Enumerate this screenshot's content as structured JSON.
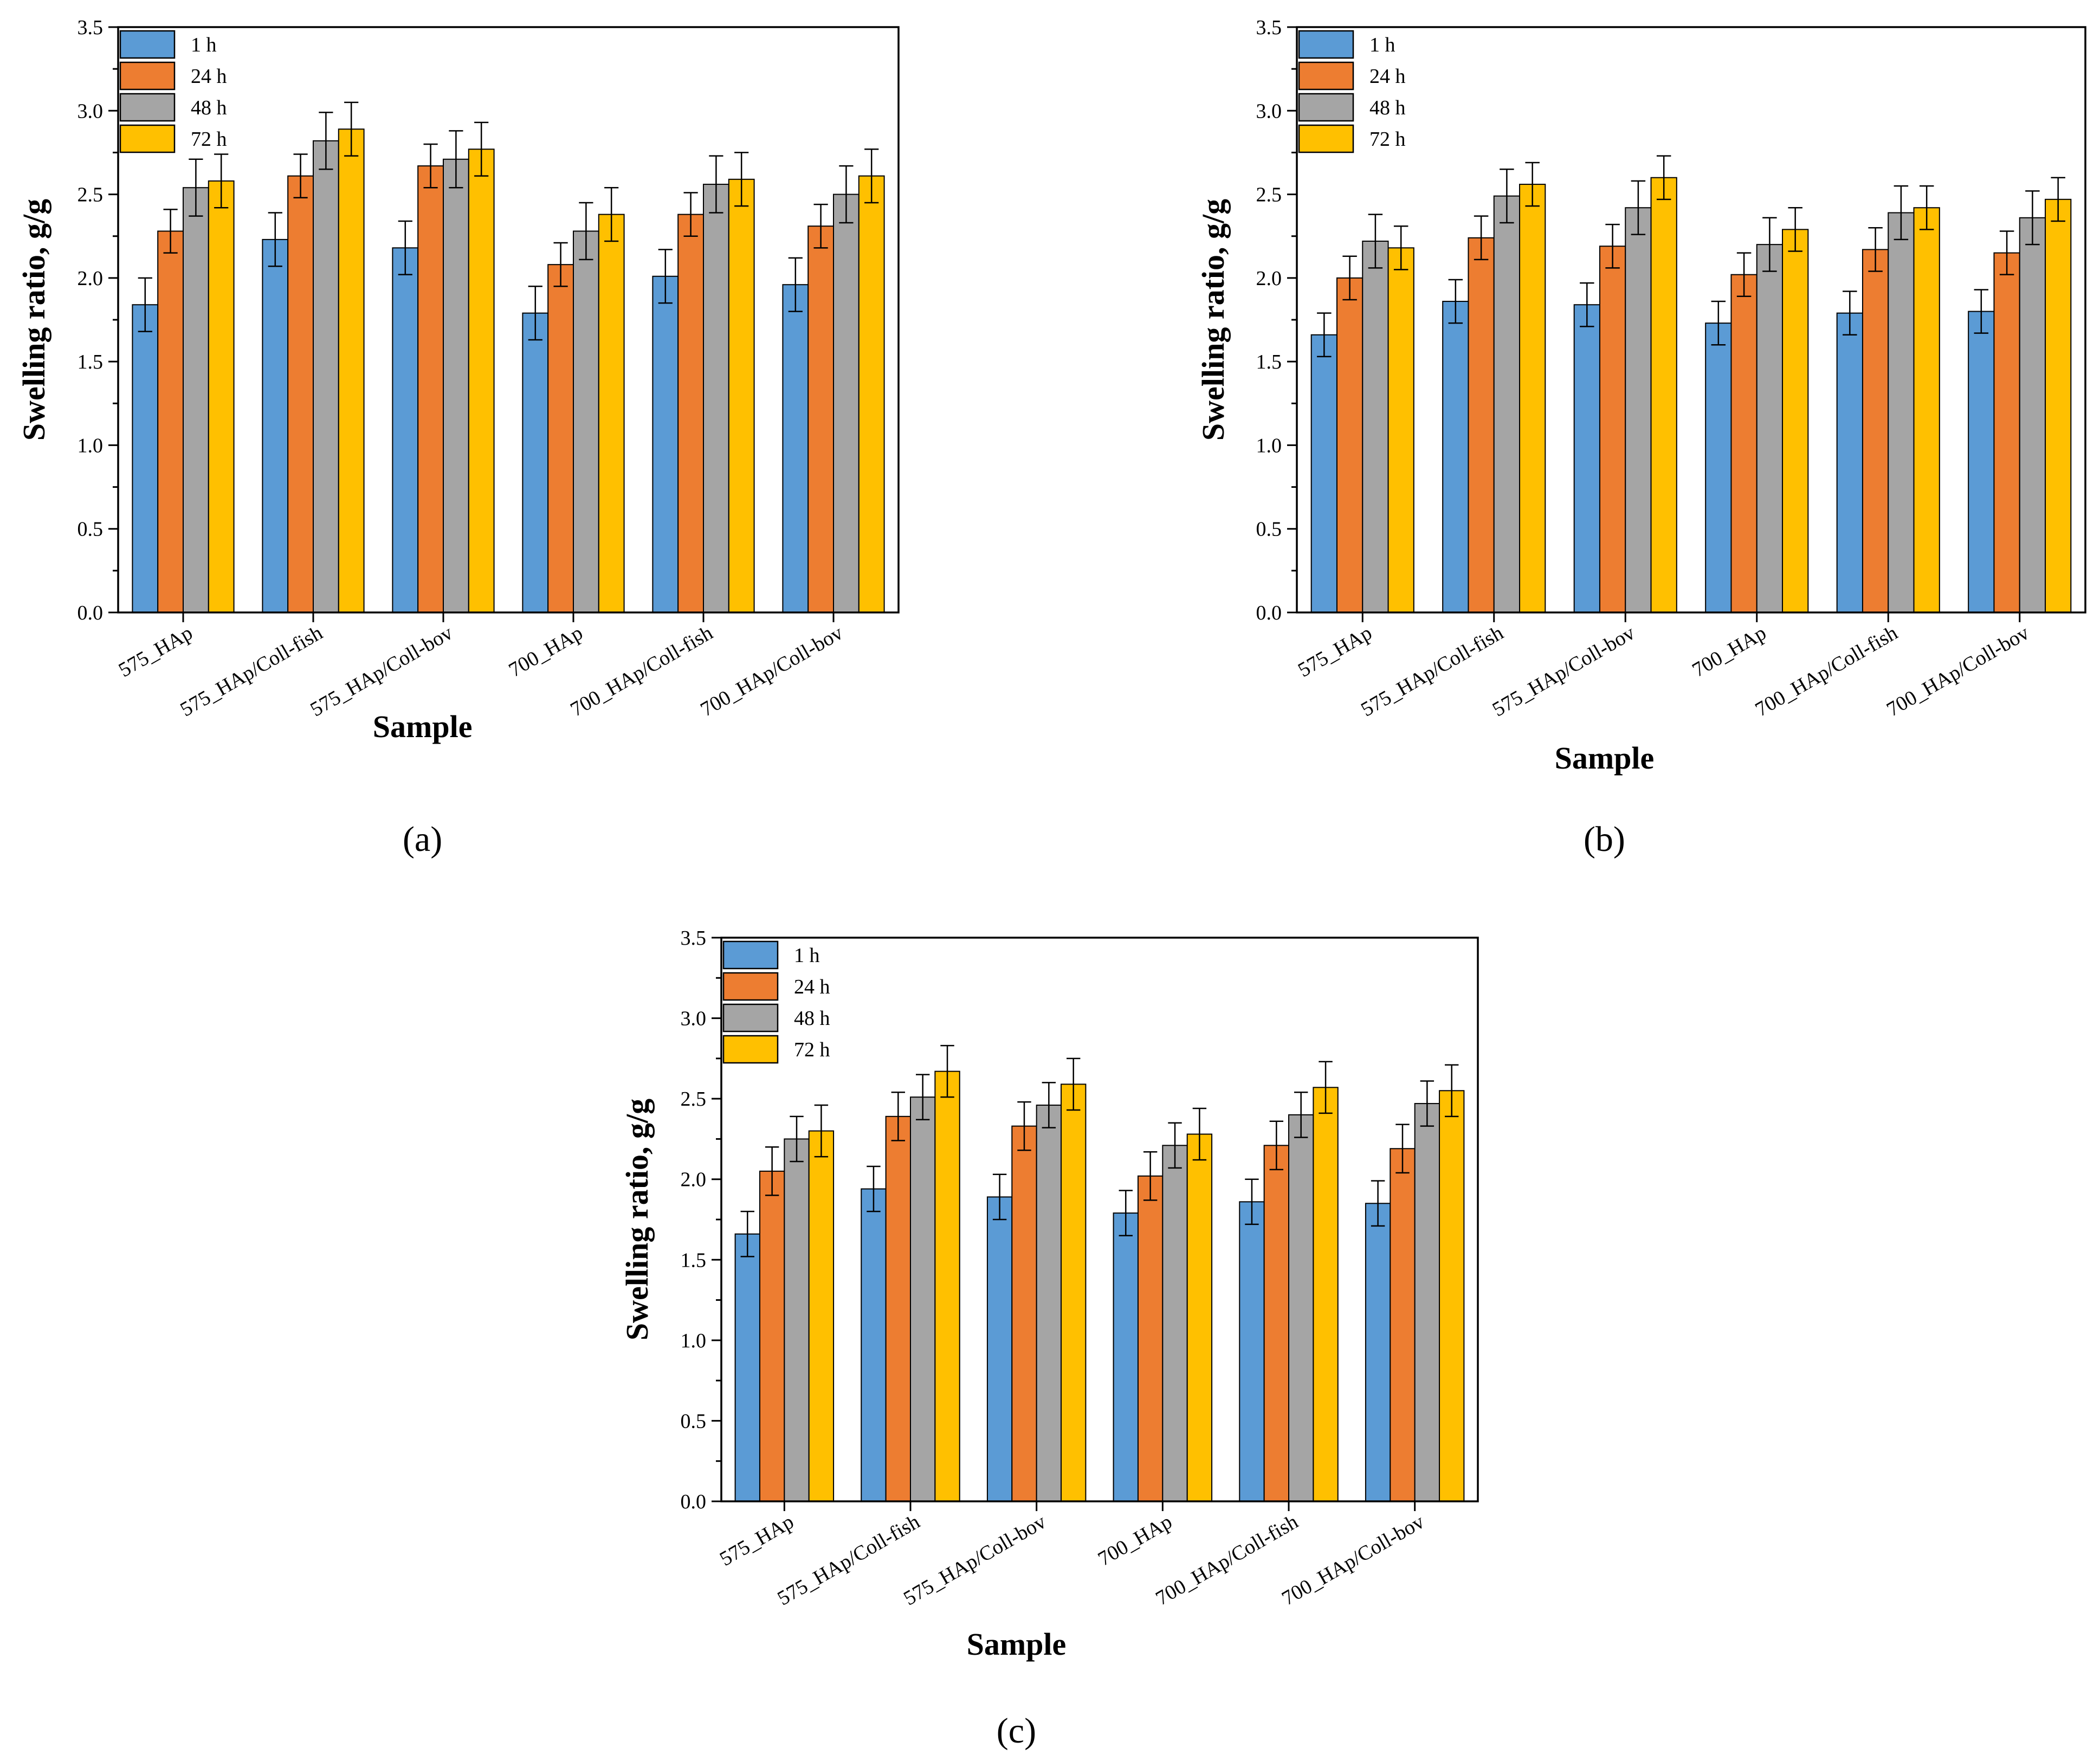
{
  "colors": {
    "1 h": "#5b9bd5",
    "24 h": "#ed7d31",
    "48 h": "#a5a5a5",
    "72 h": "#ffc000",
    "axis": "#000000",
    "errorbar": "#000000"
  },
  "chart_data": [
    {
      "type": "bar",
      "panel_label": "(a)",
      "xlabel": "Sample",
      "ylabel": "Swelling ratio, g/g",
      "ylim": [
        0,
        3.5
      ],
      "yticks": [
        "0.0",
        "0.5",
        "1.0",
        "1.5",
        "2.0",
        "2.5",
        "3.0",
        "3.5"
      ],
      "categories": [
        "575_HAp",
        "575_HAp/Coll-fish",
        "575_HAp/Coll-bov",
        "700_HAp",
        "700_HAp/Coll-fish",
        "700_HAp/Coll-bov"
      ],
      "legend_position": "top-left",
      "grid": false,
      "series": [
        {
          "name": "1 h",
          "values": [
            1.84,
            2.23,
            2.18,
            1.79,
            2.01,
            1.96
          ],
          "errors": [
            0.16,
            0.16,
            0.16,
            0.16,
            0.16,
            0.16
          ]
        },
        {
          "name": "24 h",
          "values": [
            2.28,
            2.61,
            2.67,
            2.08,
            2.38,
            2.31
          ],
          "errors": [
            0.13,
            0.13,
            0.13,
            0.13,
            0.13,
            0.13
          ]
        },
        {
          "name": "48 h",
          "values": [
            2.54,
            2.82,
            2.71,
            2.28,
            2.56,
            2.5
          ],
          "errors": [
            0.17,
            0.17,
            0.17,
            0.17,
            0.17,
            0.17
          ]
        },
        {
          "name": "72 h",
          "values": [
            2.58,
            2.89,
            2.77,
            2.38,
            2.59,
            2.61
          ],
          "errors": [
            0.16,
            0.16,
            0.16,
            0.16,
            0.16,
            0.16
          ]
        }
      ]
    },
    {
      "type": "bar",
      "panel_label": "(b)",
      "xlabel": "Sample",
      "ylabel": "Swelling ratio, g/g",
      "ylim": [
        0,
        3.5
      ],
      "yticks": [
        "0.0",
        "0.5",
        "1.0",
        "1.5",
        "2.0",
        "2.5",
        "3.0",
        "3.5"
      ],
      "categories": [
        "575_HAp",
        "575_HAp/Coll-fish",
        "575_HAp/Coll-bov",
        "700_HAp",
        "700_HAp/Coll-fish",
        "700_HAp/Coll-bov"
      ],
      "legend_position": "top-left",
      "grid": false,
      "series": [
        {
          "name": "1 h",
          "values": [
            1.66,
            1.86,
            1.84,
            1.73,
            1.79,
            1.8
          ],
          "errors": [
            0.13,
            0.13,
            0.13,
            0.13,
            0.13,
            0.13
          ]
        },
        {
          "name": "24 h",
          "values": [
            2.0,
            2.24,
            2.19,
            2.02,
            2.17,
            2.15
          ],
          "errors": [
            0.13,
            0.13,
            0.13,
            0.13,
            0.13,
            0.13
          ]
        },
        {
          "name": "48 h",
          "values": [
            2.22,
            2.49,
            2.42,
            2.2,
            2.39,
            2.36
          ],
          "errors": [
            0.16,
            0.16,
            0.16,
            0.16,
            0.16,
            0.16
          ]
        },
        {
          "name": "72 h",
          "values": [
            2.18,
            2.56,
            2.6,
            2.29,
            2.42,
            2.47
          ],
          "errors": [
            0.13,
            0.13,
            0.13,
            0.13,
            0.13,
            0.13
          ]
        }
      ]
    },
    {
      "type": "bar",
      "panel_label": "(c)",
      "xlabel": "Sample",
      "ylabel": "Swelling ratio, g/g",
      "ylim": [
        0,
        3.5
      ],
      "yticks": [
        "0.0",
        "0.5",
        "1.0",
        "1.5",
        "2.0",
        "2.5",
        "3.0",
        "3.5"
      ],
      "categories": [
        "575_HAp",
        "575_HAp/Coll-fish",
        "575_HAp/Coll-bov",
        "700_HAp",
        "700_HAp/Coll-fish",
        "700_HAp/Coll-bov"
      ],
      "legend_position": "top-left",
      "grid": false,
      "series": [
        {
          "name": "1 h",
          "values": [
            1.66,
            1.94,
            1.89,
            1.79,
            1.86,
            1.85
          ],
          "errors": [
            0.14,
            0.14,
            0.14,
            0.14,
            0.14,
            0.14
          ]
        },
        {
          "name": "24 h",
          "values": [
            2.05,
            2.39,
            2.33,
            2.02,
            2.21,
            2.19
          ],
          "errors": [
            0.15,
            0.15,
            0.15,
            0.15,
            0.15,
            0.15
          ]
        },
        {
          "name": "48 h",
          "values": [
            2.25,
            2.51,
            2.46,
            2.21,
            2.4,
            2.47
          ],
          "errors": [
            0.14,
            0.14,
            0.14,
            0.14,
            0.14,
            0.14
          ]
        },
        {
          "name": "72 h",
          "values": [
            2.3,
            2.67,
            2.59,
            2.28,
            2.57,
            2.55
          ],
          "errors": [
            0.16,
            0.16,
            0.16,
            0.16,
            0.16,
            0.16
          ]
        }
      ]
    }
  ]
}
